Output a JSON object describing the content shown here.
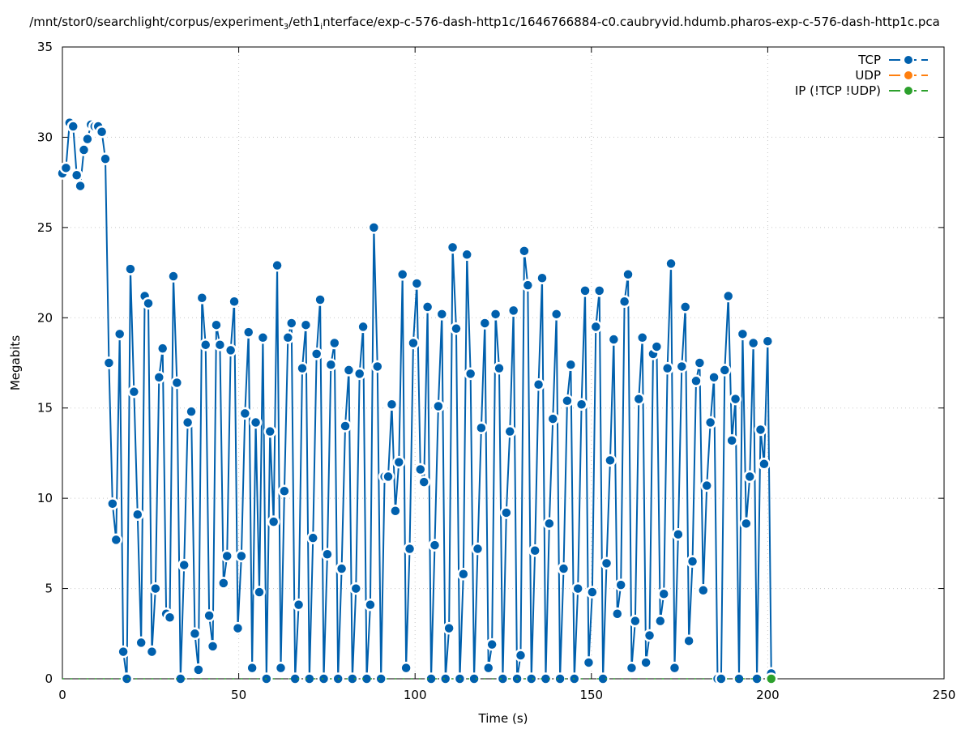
{
  "title_parts": {
    "pre": "/mnt/stor0/searchlight/corpus/experiment",
    "sub1": "3",
    "mid": "/eth1",
    "sub2": "i",
    "post": "nterface/exp-c-576-dash-http1c/1646766884-c0.caubryvid.hdumb.pharos-exp-c-576-dash-http1c.pca"
  },
  "chart_data": {
    "type": "line",
    "xlabel": "Time (s)",
    "ylabel": "Megabits",
    "xlim": [
      0,
      250
    ],
    "ylim": [
      0,
      35
    ],
    "xticks": [
      0,
      50,
      100,
      150,
      200,
      250
    ],
    "yticks": [
      0,
      5,
      10,
      15,
      20,
      25,
      30,
      35
    ],
    "grid": true,
    "legend_position": "top-right",
    "x_range_of_data": [
      0,
      201
    ],
    "series": [
      {
        "name": "TCP",
        "color": "#0060ad",
        "values": [
          28.0,
          28.3,
          30.8,
          30.6,
          27.9,
          27.3,
          29.3,
          29.9,
          30.7,
          30.6,
          30.6,
          30.3,
          28.8,
          17.5,
          9.7,
          7.7,
          19.1,
          1.5,
          0,
          22.7,
          15.9,
          9.1,
          2.0,
          21.2,
          20.8,
          1.5,
          5.0,
          16.7,
          18.3,
          3.6,
          3.4,
          22.3,
          16.4,
          0,
          6.3,
          14.2,
          14.8,
          2.5,
          0.5,
          21.1,
          18.5,
          3.5,
          1.8,
          19.6,
          18.5,
          5.3,
          6.8,
          18.2,
          20.9,
          2.8,
          6.8,
          14.7,
          19.2,
          0.6,
          14.2,
          4.8,
          18.9,
          0,
          13.7,
          8.7,
          22.9,
          0.6,
          10.4,
          18.9,
          19.7,
          0,
          4.1,
          17.2,
          19.6,
          0,
          7.8,
          18.0,
          21.0,
          0,
          6.9,
          17.4,
          18.6,
          0,
          6.1,
          14.0,
          17.1,
          0,
          5.0,
          16.9,
          19.5,
          0,
          4.1,
          25.0,
          17.3,
          0,
          11.2,
          11.2,
          15.2,
          9.3,
          12.0,
          22.4,
          0.6,
          7.2,
          18.6,
          21.9,
          11.6,
          10.9,
          20.6,
          0,
          7.4,
          15.1,
          20.2,
          0,
          2.8,
          23.9,
          19.4,
          0,
          5.8,
          23.5,
          16.9,
          0,
          7.2,
          13.9,
          19.7,
          0.6,
          1.9,
          20.2,
          17.2,
          0,
          9.2,
          13.7,
          20.4,
          0,
          1.3,
          23.7,
          21.8,
          0,
          7.1,
          16.3,
          22.2,
          0,
          8.6,
          14.4,
          20.2,
          0,
          6.1,
          15.4,
          17.4,
          0,
          5.0,
          15.2,
          21.5,
          0.9,
          4.8,
          19.5,
          21.5,
          0,
          6.4,
          12.1,
          18.8,
          3.6,
          5.2,
          20.9,
          22.4,
          0.6,
          3.2,
          15.5,
          18.9,
          0.9,
          2.4,
          18.0,
          18.4,
          3.2,
          4.7,
          17.2,
          23.0,
          0.6,
          8.0,
          17.3,
          20.6,
          2.1,
          6.5,
          16.5,
          17.5,
          4.9,
          10.7,
          14.2,
          16.7,
          0,
          0,
          17.1,
          21.2,
          13.2,
          15.5,
          0,
          19.1,
          8.6,
          11.2,
          18.6,
          0,
          13.8,
          11.9,
          18.7,
          0.3
        ]
      },
      {
        "name": "UDP",
        "color": "#ff7f0e",
        "values": []
      },
      {
        "name": "IP (!TCP  !UDP)",
        "color": "#2ca02c",
        "values": [
          0
        ],
        "x": [
          201
        ]
      }
    ]
  }
}
